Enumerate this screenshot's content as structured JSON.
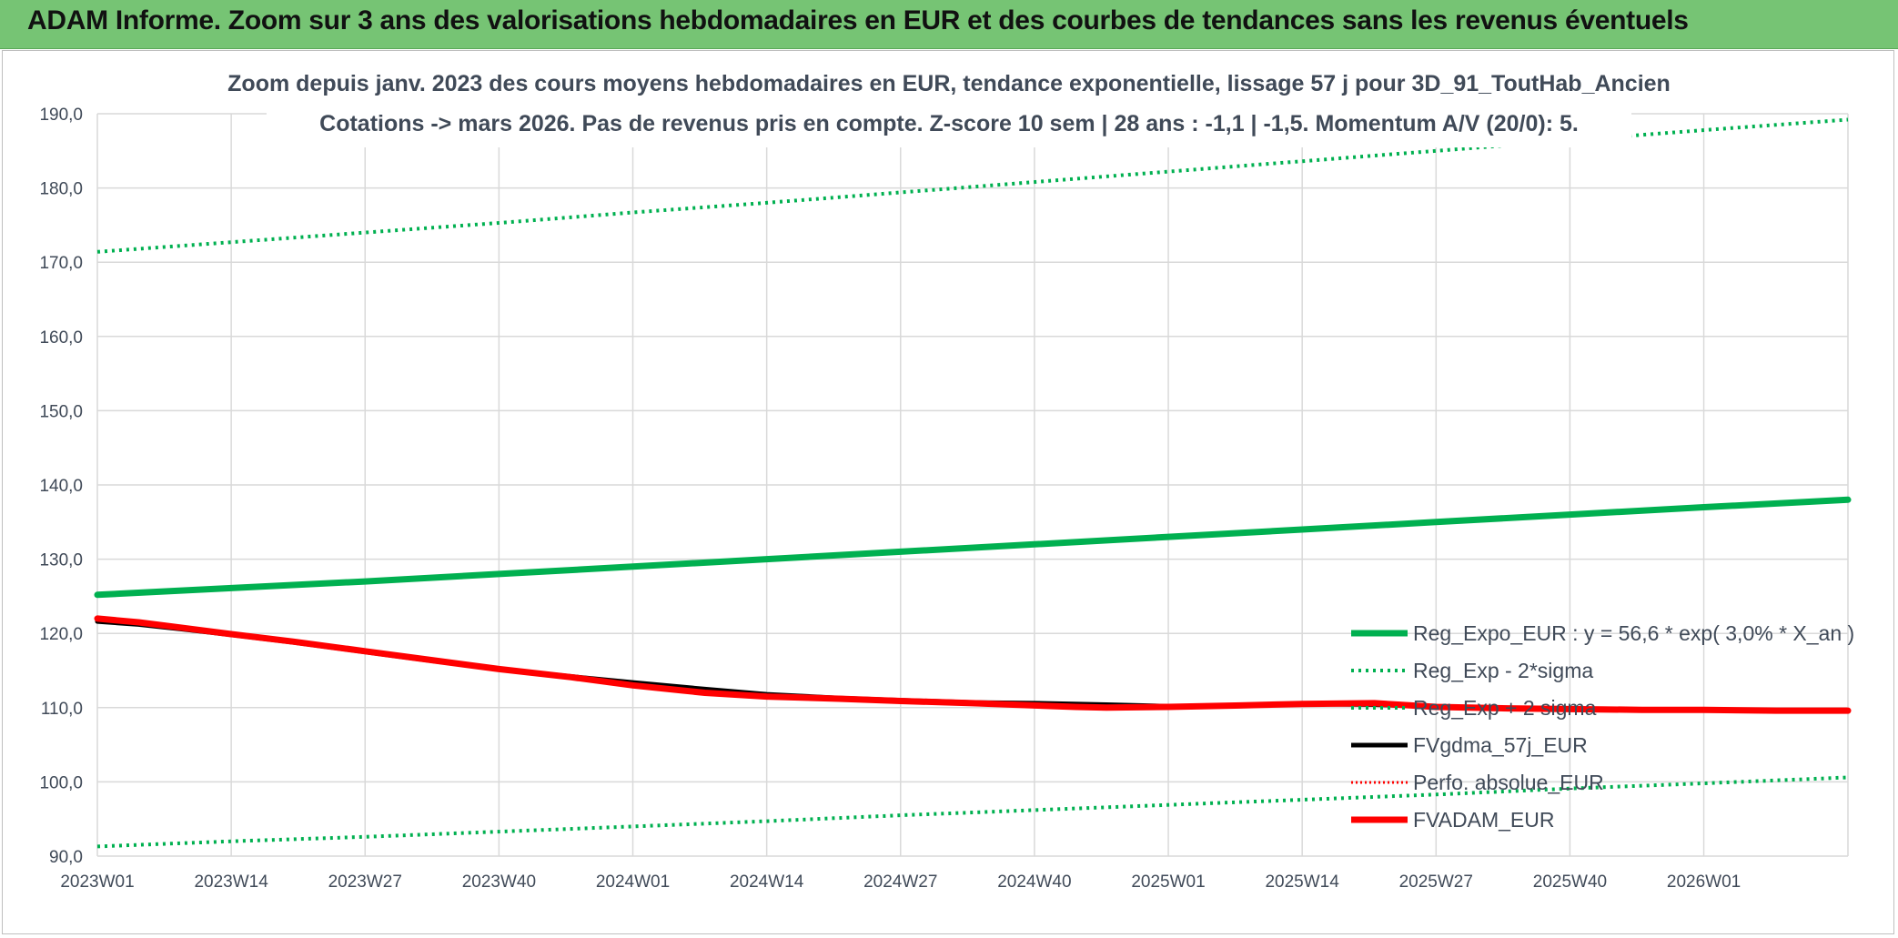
{
  "header": {
    "title": "ADAM Informe. Zoom sur 3 ans des valorisations hebdomadaires en EUR et des courbes de tendances sans les revenus éventuels"
  },
  "chart_data": {
    "type": "line",
    "title_lines": [
      "Zoom depuis janv. 2023 des cours moyens hebdomadaires en EUR, tendance exponentielle, lissage 57 j pour 3D_91_ToutHab_Ancien",
      "Cotations -> mars 2026. Pas de revenus pris en compte. Z-score 10 sem | 28 ans : -1,1 | -1,5. Momentum A/V (20/0): 5."
    ],
    "xlabel": "",
    "ylabel": "",
    "ylim": [
      90,
      190
    ],
    "ytick_values": [
      90,
      100,
      110,
      120,
      130,
      140,
      150,
      160,
      170,
      180,
      190
    ],
    "ytick_labels": [
      "90,0",
      "100,0",
      "110,0",
      "120,0",
      "130,0",
      "140,0",
      "150,0",
      "160,0",
      "170,0",
      "180,0",
      "190,0"
    ],
    "x_range": [
      0,
      170
    ],
    "xtick_values": [
      0,
      13,
      26,
      39,
      52,
      65,
      78,
      91,
      104,
      117,
      130,
      143,
      156
    ],
    "xtick_labels": [
      "2023W01",
      "2023W14",
      "2023W27",
      "2023W40",
      "2024W01",
      "2024W14",
      "2024W27",
      "2024W40",
      "2025W01",
      "2025W14",
      "2025W27",
      "2025W40",
      "2026W01"
    ],
    "grid": true,
    "legend_position": "lower-right",
    "series": [
      {
        "name": "Reg_Expo_EUR : y = 56,6 * exp( 3,0% *  X_an )",
        "color": "#00b050",
        "style": "solid",
        "width": 7,
        "x": [
          0,
          13,
          26,
          39,
          52,
          65,
          78,
          91,
          104,
          117,
          130,
          143,
          156,
          170
        ],
        "y": [
          125.2,
          126.1,
          127.0,
          128.0,
          129.0,
          130.0,
          131.0,
          132.0,
          133.0,
          134.0,
          135.0,
          136.0,
          137.0,
          138.0
        ]
      },
      {
        "name": "Reg_Exp - 2*sigma",
        "color": "#00b050",
        "style": "dotted",
        "width": 4,
        "x": [
          0,
          13,
          26,
          39,
          52,
          65,
          78,
          91,
          104,
          117,
          130,
          143,
          156,
          170
        ],
        "y": [
          91.3,
          92.0,
          92.6,
          93.3,
          94.0,
          94.7,
          95.5,
          96.2,
          96.9,
          97.6,
          98.3,
          99.1,
          99.8,
          100.6
        ]
      },
      {
        "name": "Reg_Exp + 2 sigma",
        "color": "#00b050",
        "style": "dotted",
        "width": 4,
        "x": [
          0,
          13,
          26,
          39,
          52,
          65,
          78,
          91,
          104,
          117,
          130,
          143,
          156,
          170
        ],
        "y": [
          171.4,
          172.7,
          174.0,
          175.3,
          176.7,
          178.0,
          179.4,
          180.8,
          182.2,
          183.6,
          185.0,
          186.4,
          187.8,
          189.2
        ]
      },
      {
        "name": "FVgdma_57j_EUR",
        "color": "#000000",
        "style": "solid",
        "width": 5,
        "x": [
          0,
          4,
          8,
          13,
          19,
          26,
          33,
          39,
          46,
          52,
          59,
          65,
          72,
          78,
          85,
          91,
          98,
          104,
          111,
          117,
          124,
          130,
          137,
          143,
          150,
          156,
          163,
          170
        ],
        "y": [
          121.6,
          121.2,
          120.6,
          119.8,
          118.8,
          117.5,
          116.2,
          115.2,
          114.2,
          113.4,
          112.5,
          111.8,
          111.3,
          111.0,
          110.7,
          110.6,
          110.4,
          110.2,
          110.3,
          110.5,
          110.4,
          110.1,
          109.9,
          109.8,
          109.7,
          109.7,
          109.6,
          109.6
        ]
      },
      {
        "name": "Perfo. absolue_EUR",
        "color": "#ff0000",
        "style": "dotted",
        "width": 3,
        "x": [],
        "y": []
      },
      {
        "name": "FVADAM_EUR",
        "color": "#ff0000",
        "style": "solid",
        "width": 7,
        "x": [
          0,
          4,
          8,
          13,
          19,
          26,
          33,
          39,
          46,
          52,
          59,
          65,
          72,
          78,
          85,
          91,
          95,
          98,
          104,
          111,
          117,
          124,
          130,
          137,
          143,
          150,
          156,
          163,
          170
        ],
        "y": [
          122.0,
          121.5,
          120.8,
          119.9,
          118.9,
          117.6,
          116.3,
          115.2,
          114.1,
          113.0,
          112.0,
          111.5,
          111.2,
          110.9,
          110.6,
          110.3,
          110.1,
          110.0,
          110.1,
          110.3,
          110.5,
          110.6,
          110.1,
          109.9,
          109.8,
          109.7,
          109.7,
          109.6,
          109.6
        ]
      }
    ]
  }
}
